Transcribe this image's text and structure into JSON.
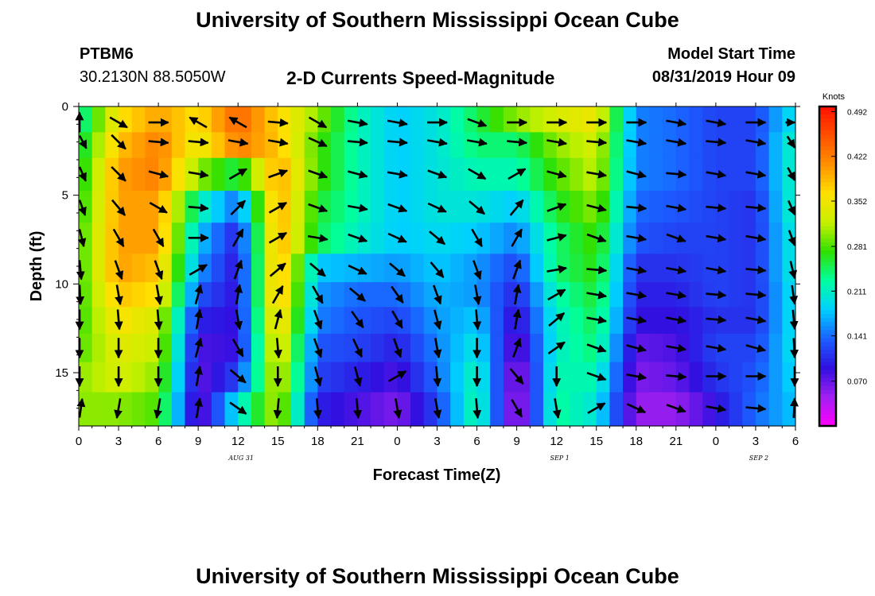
{
  "header": {
    "title": "University of Southern Mississippi Ocean Cube",
    "station_id": "PTBM6",
    "coordinates": "30.2130N 88.5050W",
    "chart_title": "2-D Currents Speed-Magnitude",
    "model_start_label": "Model Start Time",
    "model_start_value": "08/31/2019 Hour 09"
  },
  "footer": {
    "title": "University of Southern Mississippi Ocean Cube"
  },
  "colors": {
    "scale": [
      "#ff00ff",
      "#a020f0",
      "#3010e0",
      "#1a60ff",
      "#00d0ff",
      "#00ffa0",
      "#30e000",
      "#c8f000",
      "#ffe000",
      "#ff9000",
      "#ff5000",
      "#ff1000"
    ]
  },
  "chart_data": {
    "type": "heatmap",
    "title": "2-D Currents Speed-Magnitude",
    "xlabel": "Forecast Time(Z)",
    "ylabel": "Depth (ft)",
    "x_tick_labels": [
      "0",
      "3",
      "6",
      "9",
      "12",
      "15",
      "18",
      "21",
      "0",
      "3",
      "6",
      "9",
      "12",
      "15",
      "18",
      "21",
      "0",
      "3",
      "6"
    ],
    "date_labels": [
      {
        "label": "AUG 31",
        "at_tick": 4
      },
      {
        "label": "SEP 1",
        "at_tick": 12
      },
      {
        "label": "SEP 2",
        "at_tick": 17
      }
    ],
    "y_tick_labels": [
      "0",
      "5",
      "10",
      "15"
    ],
    "y_ticks": [
      0,
      5,
      10,
      15
    ],
    "ylim": [
      0,
      18
    ],
    "colorbar": {
      "unit": "Knots",
      "range": [
        0,
        0.5
      ],
      "tick_labels": [
        "0.492",
        "0.422",
        "0.352",
        "0.281",
        "0.211",
        "0.141",
        "0.070"
      ],
      "ticks": [
        0.492,
        0.422,
        0.352,
        0.281,
        0.211,
        0.141,
        0.07
      ]
    },
    "depths": [
      0.9,
      2.0,
      3.8,
      5.7,
      7.4,
      9.2,
      10.6,
      12.0,
      13.6,
      15.2,
      17.0
    ],
    "time_columns": [
      0,
      1,
      2,
      3,
      4,
      5,
      6,
      7,
      8,
      9,
      10,
      11,
      12,
      13,
      14,
      15,
      16,
      17,
      18
    ],
    "speed_knots": [
      [
        0.22,
        0.36,
        0.4,
        0.36,
        0.44,
        0.37,
        0.3,
        0.22,
        0.18,
        0.2,
        0.25,
        0.3,
        0.33,
        0.35,
        0.15,
        0.14,
        0.12,
        0.12,
        0.2
      ],
      [
        0.24,
        0.38,
        0.42,
        0.34,
        0.42,
        0.38,
        0.28,
        0.22,
        0.18,
        0.2,
        0.24,
        0.24,
        0.3,
        0.33,
        0.15,
        0.14,
        0.12,
        0.12,
        0.22
      ],
      [
        0.25,
        0.4,
        0.42,
        0.3,
        0.25,
        0.4,
        0.28,
        0.22,
        0.18,
        0.2,
        0.22,
        0.22,
        0.28,
        0.32,
        0.15,
        0.14,
        0.12,
        0.12,
        0.22
      ],
      [
        0.26,
        0.4,
        0.4,
        0.22,
        0.14,
        0.4,
        0.26,
        0.22,
        0.18,
        0.2,
        0.2,
        0.18,
        0.26,
        0.3,
        0.14,
        0.13,
        0.12,
        0.11,
        0.22
      ],
      [
        0.27,
        0.4,
        0.4,
        0.18,
        0.1,
        0.4,
        0.25,
        0.21,
        0.18,
        0.19,
        0.18,
        0.15,
        0.24,
        0.28,
        0.13,
        0.12,
        0.12,
        0.11,
        0.21
      ],
      [
        0.27,
        0.4,
        0.38,
        0.16,
        0.09,
        0.4,
        0.18,
        0.17,
        0.16,
        0.18,
        0.16,
        0.12,
        0.24,
        0.27,
        0.11,
        0.11,
        0.12,
        0.11,
        0.21
      ],
      [
        0.27,
        0.38,
        0.36,
        0.13,
        0.09,
        0.4,
        0.16,
        0.14,
        0.14,
        0.17,
        0.16,
        0.1,
        0.22,
        0.26,
        0.1,
        0.1,
        0.12,
        0.11,
        0.2
      ],
      [
        0.27,
        0.36,
        0.33,
        0.1,
        0.09,
        0.38,
        0.15,
        0.13,
        0.12,
        0.16,
        0.18,
        0.08,
        0.21,
        0.25,
        0.09,
        0.09,
        0.11,
        0.11,
        0.2
      ],
      [
        0.28,
        0.34,
        0.32,
        0.08,
        0.09,
        0.36,
        0.13,
        0.12,
        0.1,
        0.15,
        0.2,
        0.06,
        0.21,
        0.24,
        0.07,
        0.08,
        0.12,
        0.12,
        0.2
      ],
      [
        0.3,
        0.33,
        0.3,
        0.07,
        0.12,
        0.34,
        0.12,
        0.1,
        0.08,
        0.14,
        0.22,
        0.04,
        0.22,
        0.22,
        0.06,
        0.07,
        0.11,
        0.13,
        0.19
      ],
      [
        0.3,
        0.3,
        0.28,
        0.06,
        0.2,
        0.32,
        0.1,
        0.08,
        0.06,
        0.12,
        0.23,
        0.03,
        0.23,
        0.2,
        0.05,
        0.05,
        0.09,
        0.14,
        0.18
      ]
    ],
    "vector_dir_deg": [
      [
        0,
        120,
        90,
        300,
        300,
        95,
        120,
        100,
        100,
        90,
        110,
        90,
        90,
        90,
        90,
        100,
        100,
        90,
        90
      ],
      [
        130,
        135,
        95,
        95,
        100,
        100,
        115,
        95,
        95,
        100,
        100,
        95,
        100,
        95,
        100,
        100,
        95,
        100,
        125
      ],
      [
        135,
        135,
        105,
        100,
        60,
        70,
        110,
        105,
        100,
        110,
        120,
        60,
        105,
        100,
        105,
        95,
        100,
        100,
        130
      ],
      [
        140,
        140,
        120,
        95,
        45,
        60,
        110,
        100,
        110,
        115,
        130,
        40,
        70,
        105,
        95,
        100,
        95,
        95,
        135
      ],
      [
        150,
        150,
        150,
        90,
        30,
        60,
        100,
        110,
        115,
        130,
        150,
        30,
        75,
        110,
        100,
        110,
        100,
        100,
        140
      ],
      [
        165,
        160,
        160,
        60,
        20,
        50,
        130,
        115,
        130,
        140,
        160,
        20,
        80,
        95,
        100,
        100,
        100,
        95,
        150
      ],
      [
        170,
        170,
        170,
        15,
        10,
        30,
        150,
        130,
        145,
        160,
        170,
        10,
        60,
        100,
        100,
        100,
        95,
        95,
        160
      ],
      [
        175,
        175,
        175,
        10,
        170,
        15,
        160,
        145,
        150,
        165,
        175,
        10,
        50,
        100,
        100,
        100,
        95,
        100,
        165
      ],
      [
        180,
        180,
        180,
        15,
        150,
        175,
        160,
        155,
        160,
        170,
        180,
        20,
        55,
        110,
        105,
        100,
        100,
        105,
        170
      ],
      [
        180,
        180,
        180,
        10,
        130,
        180,
        165,
        165,
        60,
        175,
        180,
        140,
        180,
        110,
        100,
        95,
        90,
        90,
        180
      ],
      [
        20,
        190,
        190,
        10,
        125,
        185,
        175,
        175,
        170,
        170,
        175,
        150,
        170,
        60,
        115,
        110,
        100,
        95,
        10
      ]
    ]
  }
}
